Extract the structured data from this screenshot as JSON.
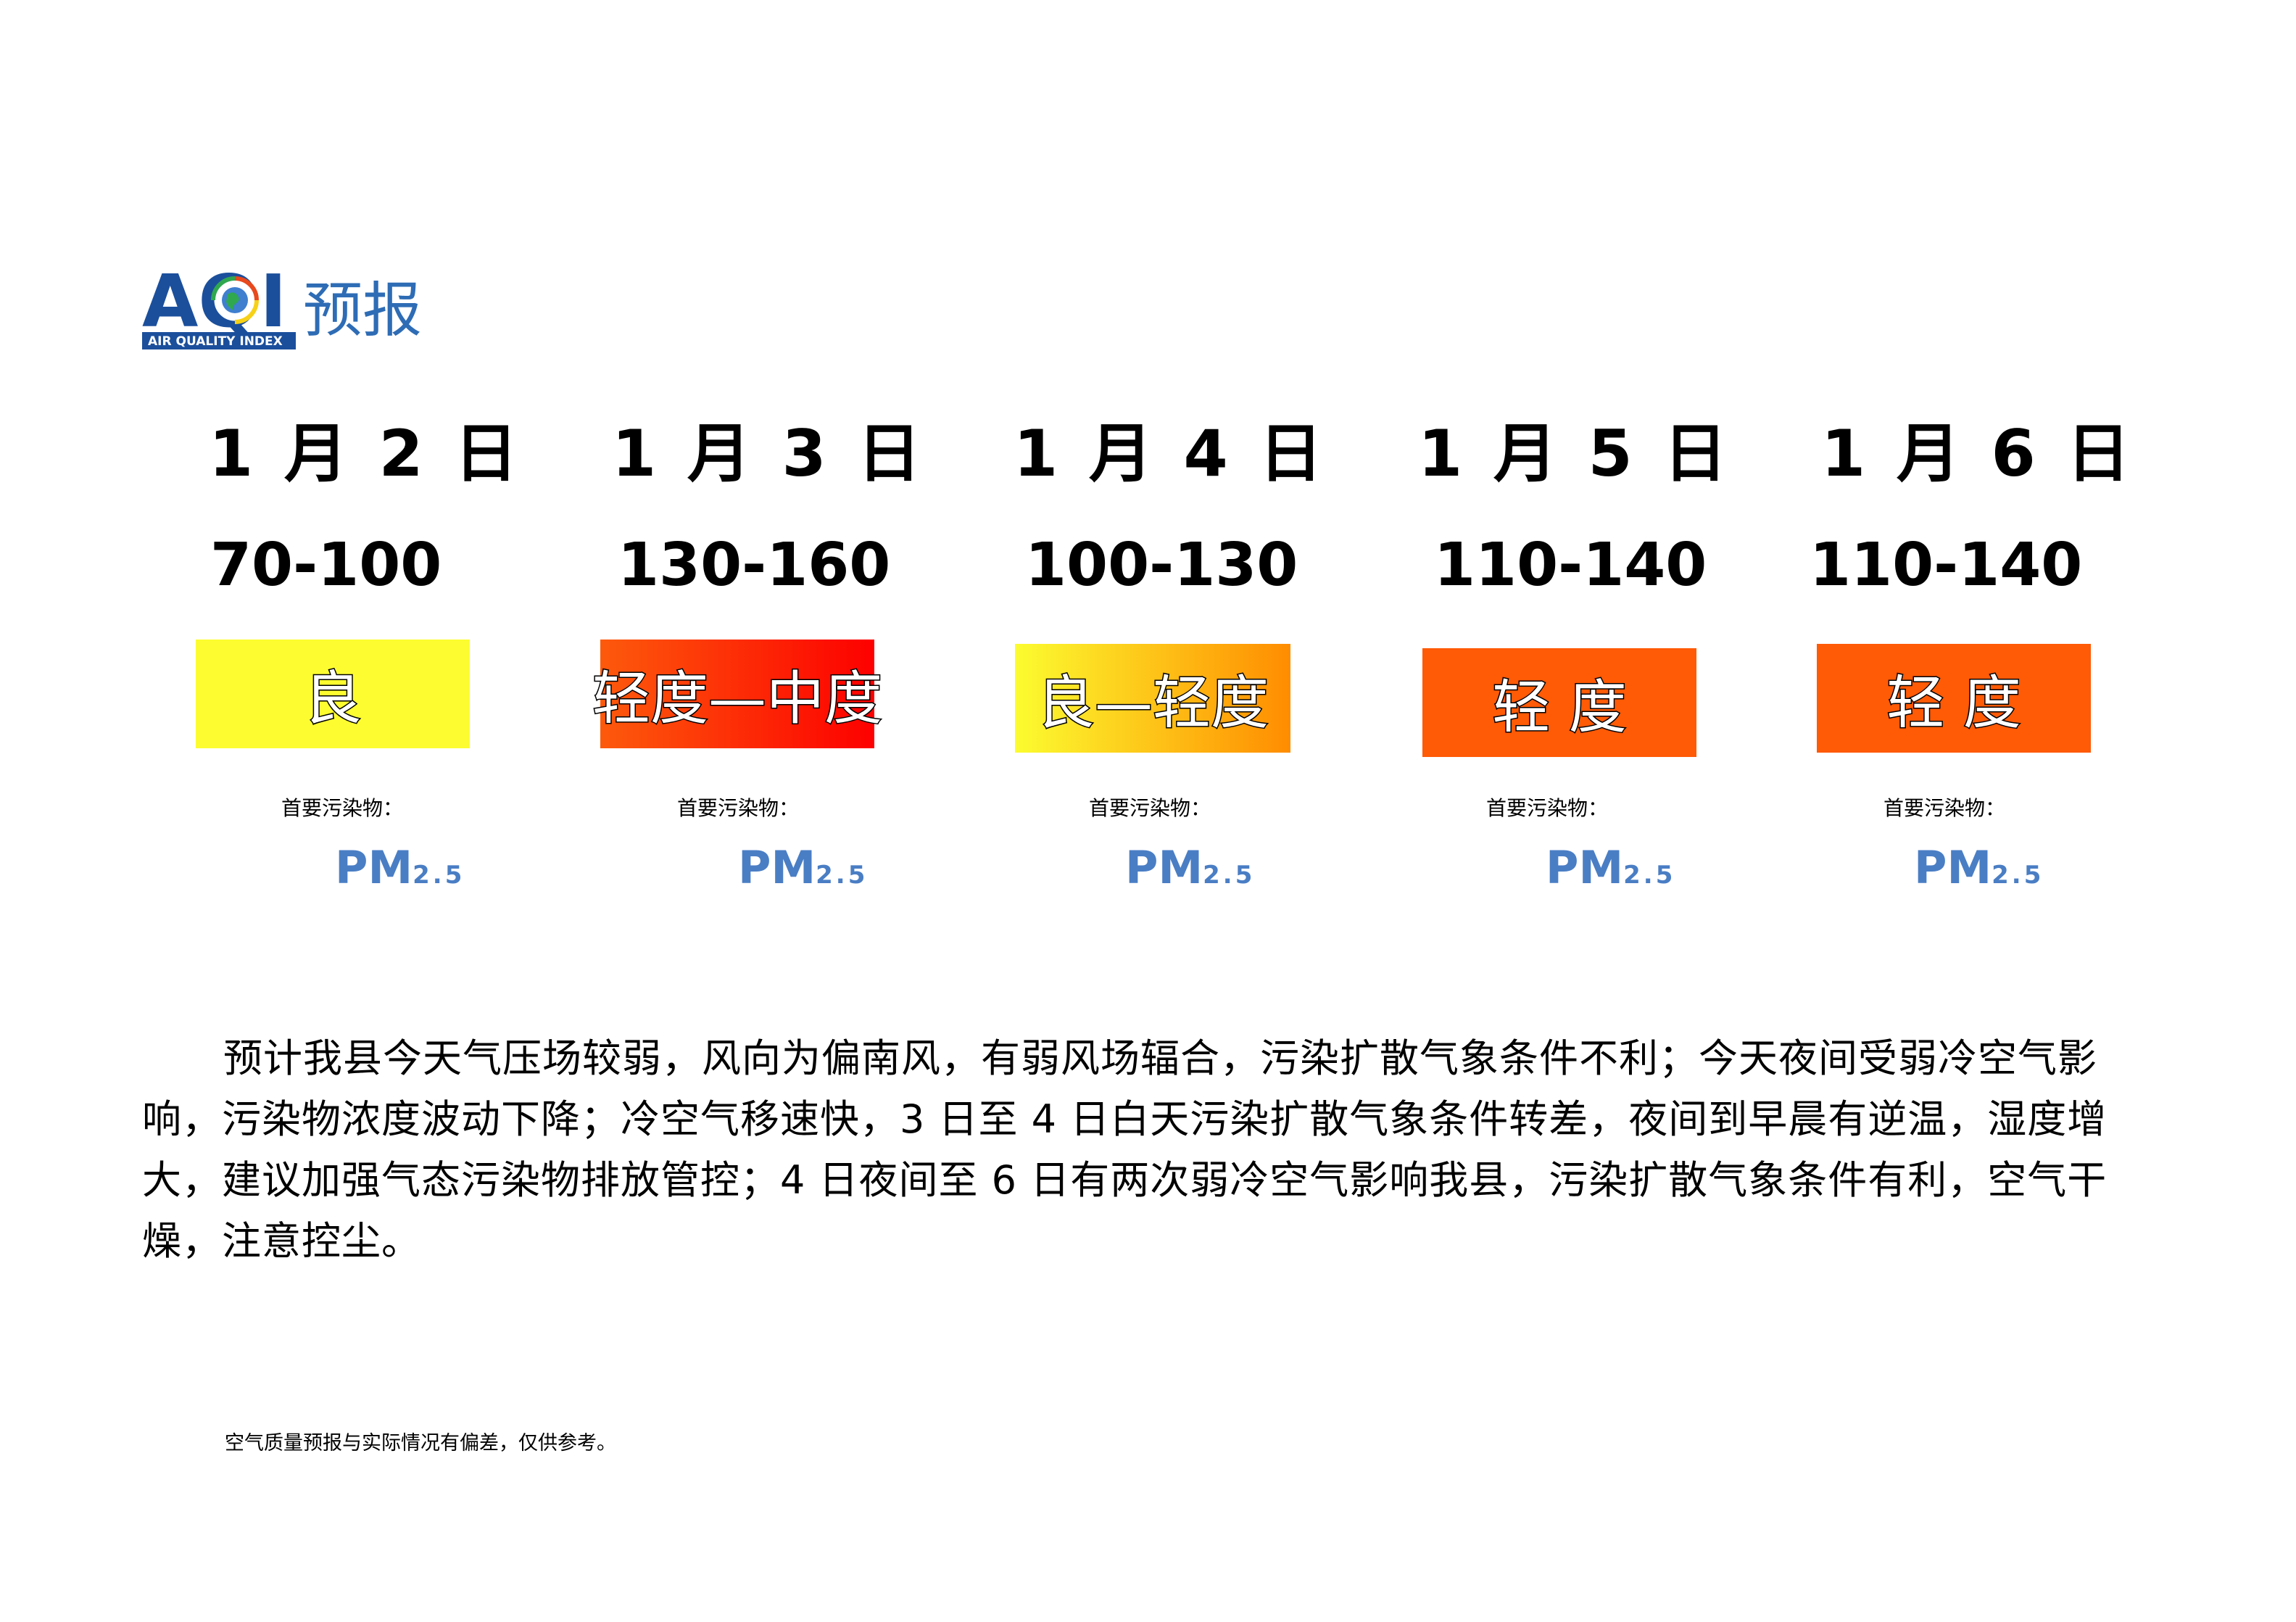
{
  "logo": {
    "mark": "AQI",
    "subtitle": "AIR QUALITY INDEX",
    "label": "预报",
    "colors": {
      "navy": "#1b4f9c",
      "light_blue": "#2e6cb5",
      "globe_rim": [
        "#2fa84f",
        "#f7d117",
        "#e8491d",
        "#1b4f9c"
      ]
    }
  },
  "days": [
    {
      "date": "1 月 2 日",
      "range": "70-100",
      "level": "良",
      "level_colors": [
        "#fcfc30"
      ],
      "pollutant_label": "首要污染物：",
      "pollutant": "PM",
      "pollutant_sub": "2.5"
    },
    {
      "date": "1 月 3 日",
      "range": "130-160",
      "level": "轻度—中度",
      "level_colors": [
        "#fd5a0c",
        "#fd0000"
      ],
      "pollutant_label": "首要污染物：",
      "pollutant": "PM",
      "pollutant_sub": "2.5"
    },
    {
      "date": "1 月 4 日",
      "range": "100-130",
      "level": "良—轻度",
      "level_colors": [
        "#fcfc30",
        "#ff8c00"
      ],
      "pollutant_label": "首要污染物：",
      "pollutant": "PM",
      "pollutant_sub": "2.5"
    },
    {
      "date": "1 月 5 日",
      "range": "110-140",
      "level": "轻 度",
      "level_colors": [
        "#ff5a06"
      ],
      "pollutant_label": "首要污染物：",
      "pollutant": "PM",
      "pollutant_sub": "2.5"
    },
    {
      "date": "1 月 6 日",
      "range": "110-140",
      "level": "轻 度",
      "level_colors": [
        "#ff5a06"
      ],
      "pollutant_label": "首要污染物：",
      "pollutant": "PM",
      "pollutant_sub": "2.5"
    }
  ],
  "paragraph": "预计我县今天气压场较弱，风向为偏南风，有弱风场辐合，污染扩散气象条件不利；今天夜间受弱冷空气影响，污染物浓度波动下降；冷空气移速快，3 日至 4 日白天污染扩散气象条件转差，夜间到早晨有逆温，湿度增大，建议加强气态污染物排放管控；4 日夜间至 6 日有两次弱冷空气影响我县，污染扩散气象条件有利，空气干燥，注意控尘。",
  "note": "空气质量预报与实际情况有偏差，仅供参考。"
}
